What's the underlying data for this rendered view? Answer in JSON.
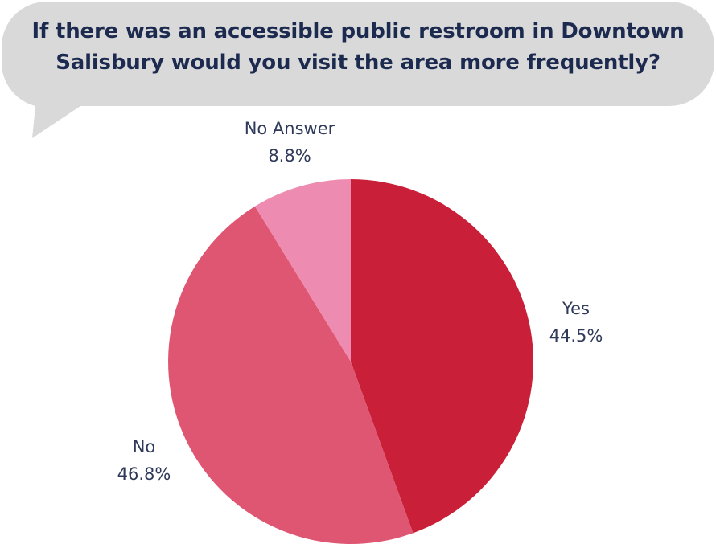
{
  "chart_data": {
    "type": "pie",
    "title_lines": [
      "If there was an accessible public restroom in Downtown",
      "Salisbury would you visit the area more frequently?"
    ],
    "slices": [
      {
        "label": "Yes",
        "value": 44.5,
        "value_label": "44.5%",
        "color": "#c91f38"
      },
      {
        "label": "No",
        "value": 46.8,
        "value_label": "46.8%",
        "color": "#df5673"
      },
      {
        "label": "No Answer",
        "value": 8.8,
        "value_label": "8.8%",
        "color": "#ee8bb0"
      }
    ],
    "start_angle": "12 o'clock",
    "direction": "clockwise",
    "legend": "none",
    "colors": {
      "title": "#1b2a4e",
      "labels": "#2f3a5a",
      "bubble": "#d9d9d9"
    }
  }
}
